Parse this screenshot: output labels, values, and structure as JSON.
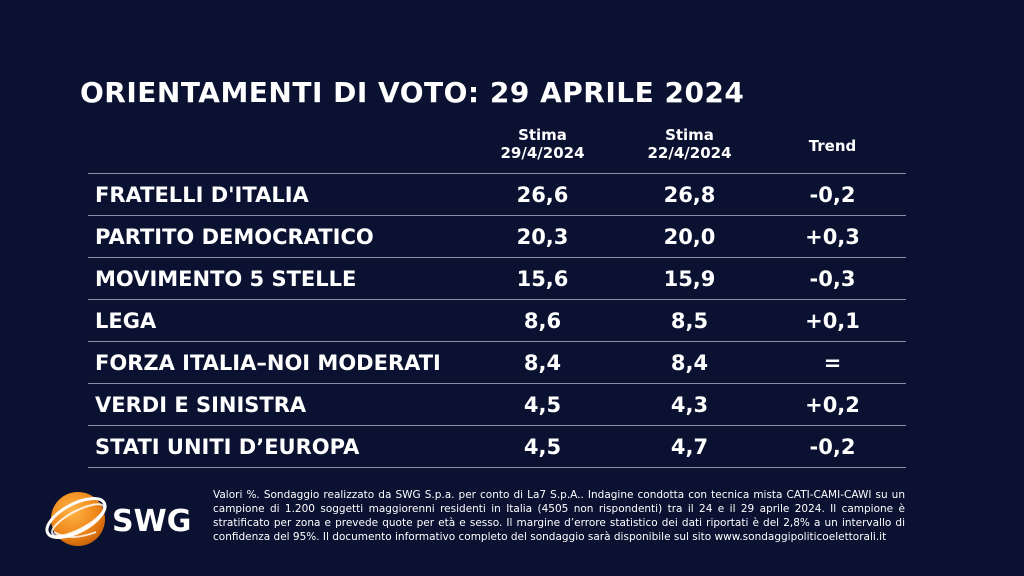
{
  "title": "ORIENTAMENTI DI VOTO: 29 APRILE 2024",
  "columns": [
    {
      "line1": "Stima",
      "line2": "29/4/2024"
    },
    {
      "line1": "Stima",
      "line2": "22/4/2024"
    },
    {
      "line1": "Trend",
      "line2": ""
    }
  ],
  "rows": [
    {
      "party": "FRATELLI D'ITALIA",
      "current": "26,6",
      "previous": "26,8",
      "trend": "-0,2"
    },
    {
      "party": "PARTITO DEMOCRATICO",
      "current": "20,3",
      "previous": "20,0",
      "trend": "+0,3"
    },
    {
      "party": "MOVIMENTO 5 STELLE",
      "current": "15,6",
      "previous": "15,9",
      "trend": "-0,3"
    },
    {
      "party": "LEGA",
      "current": "8,6",
      "previous": "8,5",
      "trend": "+0,1"
    },
    {
      "party": "FORZA ITALIA–NOI MODERATI",
      "current": "8,4",
      "previous": "8,4",
      "trend": "="
    },
    {
      "party": "VERDI E SINISTRA",
      "current": "4,5",
      "previous": "4,3",
      "trend": "+0,2"
    },
    {
      "party": "STATI UNITI D’EUROPA",
      "current": "4,5",
      "previous": "4,7",
      "trend": "-0,2"
    }
  ],
  "logo": {
    "text": "SWG",
    "accent_color": "#f08a1c"
  },
  "footnote": "Valori %. Sondaggio realizzato da SWG S.p.a. per conto di La7 S.p.A.. Indagine condotta con tecnica mista CATI-CAMI-CAWI su un campione di 1.200 soggetti maggiorenni residenti in Italia (4505 non rispondenti) tra il 24 e il 29 aprile 2024. Il campione è stratificato per zona e prevede quote per età e sesso. Il margine d’errore statistico dei dati riportati è del 2,8% a un intervallo di confidenza del 95%. Il documento informativo completo del sondaggio sarà disponibile sul sito www.sondaggipoliticoelettorali.it"
}
